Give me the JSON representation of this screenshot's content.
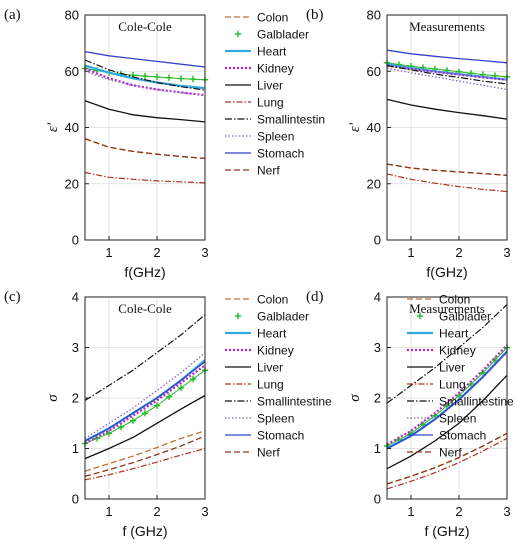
{
  "chart_data": [
    {
      "type": "line",
      "panel_label": "(a)",
      "title": "Cole-Cole",
      "xlabel": "f(GHz)",
      "ylabel": "ε'",
      "xlim": [
        0.5,
        3
      ],
      "ylim": [
        0,
        80
      ],
      "xticks": [
        1,
        2,
        3
      ],
      "yticks": [
        0,
        20,
        40,
        60,
        80
      ],
      "grid": true,
      "legend": "right",
      "x": [
        0.5,
        1.0,
        1.5,
        2.0,
        2.5,
        3.0
      ],
      "series": [
        {
          "name": "Colon",
          "values": [
            36,
            33,
            31.5,
            30.5,
            29.7,
            29
          ]
        },
        {
          "name": "Galblader",
          "values": [
            61,
            59.5,
            58.6,
            58,
            57.4,
            57
          ]
        },
        {
          "name": "Heart",
          "values": [
            62,
            59.5,
            57.5,
            56,
            54.8,
            54
          ]
        },
        {
          "name": "Kidney",
          "values": [
            61,
            57.5,
            55,
            53.5,
            52.5,
            51.5
          ]
        },
        {
          "name": "Liver",
          "values": [
            49.5,
            46.5,
            44.5,
            43.5,
            42.8,
            42
          ]
        },
        {
          "name": "Lung",
          "values": [
            24,
            22.3,
            21.6,
            21,
            20.7,
            20.3
          ]
        },
        {
          "name": "Smallintestin",
          "values": [
            64,
            60.5,
            58,
            56,
            54.5,
            53.3
          ]
        },
        {
          "name": "Spleen",
          "values": [
            60,
            57,
            55,
            53.5,
            52.3,
            51.5
          ]
        },
        {
          "name": "Stomach",
          "values": [
            67,
            65.5,
            64.5,
            63.5,
            62.5,
            61.5
          ]
        },
        {
          "name": "Nerf",
          "values": [
            36,
            33,
            31.5,
            30.5,
            29.7,
            29
          ]
        }
      ]
    },
    {
      "type": "line",
      "panel_label": "(b)",
      "title": "Measurements",
      "xlabel": "f(GHz)",
      "ylabel": "ε'",
      "xlim": [
        0.5,
        3
      ],
      "ylim": [
        0,
        80
      ],
      "xticks": [
        1,
        2,
        3
      ],
      "yticks": [
        0,
        20,
        40,
        60,
        80
      ],
      "grid": true,
      "x": [
        0.5,
        1.0,
        1.5,
        2.0,
        2.5,
        3.0
      ],
      "series": [
        {
          "name": "Colon",
          "values": [
            27,
            25.6,
            24.8,
            24.2,
            23.6,
            23
          ]
        },
        {
          "name": "Galblader",
          "values": [
            63,
            61.8,
            60.8,
            59.8,
            58.8,
            58
          ]
        },
        {
          "name": "Heart",
          "values": [
            62.5,
            61.2,
            60,
            59,
            58,
            57
          ]
        },
        {
          "name": "Kidney",
          "values": [
            62,
            60.8,
            59.8,
            58.8,
            57.8,
            57
          ]
        },
        {
          "name": "Liver",
          "values": [
            50,
            48,
            46.5,
            45.3,
            44.2,
            43
          ]
        },
        {
          "name": "Lung",
          "values": [
            23.5,
            21.6,
            20.2,
            19,
            18,
            17.2
          ]
        },
        {
          "name": "Smallintestine",
          "values": [
            62,
            60.5,
            59,
            57.8,
            56.5,
            55.5
          ]
        },
        {
          "name": "Spleen",
          "values": [
            61,
            59.5,
            58,
            56.5,
            55,
            53.5
          ]
        },
        {
          "name": "Stomach",
          "values": [
            67.5,
            66.2,
            65.3,
            64.5,
            63.8,
            63
          ]
        },
        {
          "name": "Nerf",
          "values": [
            27,
            25.6,
            24.8,
            24.2,
            23.6,
            23
          ]
        }
      ]
    },
    {
      "type": "line",
      "panel_label": "(c)",
      "title": "Cole-Cole",
      "xlabel": "f (GHz)",
      "ylabel": "σ",
      "xlim": [
        0.5,
        3
      ],
      "ylim": [
        0,
        4
      ],
      "xticks": [
        1,
        2,
        3
      ],
      "yticks": [
        0,
        1,
        2,
        3,
        4
      ],
      "grid": true,
      "legend": "right",
      "x": [
        0.5,
        1.0,
        1.5,
        2.0,
        2.5,
        3.0
      ],
      "series": [
        {
          "name": "Colon",
          "values": [
            0.55,
            0.7,
            0.85,
            1.02,
            1.2,
            1.35
          ]
        },
        {
          "name": "Galblader",
          "values": [
            1.1,
            1.3,
            1.55,
            1.85,
            2.2,
            2.55
          ]
        },
        {
          "name": "Heart",
          "values": [
            1.15,
            1.4,
            1.7,
            2.0,
            2.35,
            2.75
          ]
        },
        {
          "name": "Kidney",
          "values": [
            1.1,
            1.35,
            1.65,
            1.95,
            2.3,
            2.65
          ]
        },
        {
          "name": "Liver",
          "values": [
            0.8,
            1.0,
            1.22,
            1.5,
            1.78,
            2.05
          ]
        },
        {
          "name": "Lung",
          "values": [
            0.38,
            0.48,
            0.6,
            0.73,
            0.87,
            1.0
          ]
        },
        {
          "name": "Smallintestine",
          "values": [
            1.95,
            2.25,
            2.55,
            2.9,
            3.25,
            3.65
          ]
        },
        {
          "name": "Spleen",
          "values": [
            1.2,
            1.5,
            1.8,
            2.15,
            2.5,
            2.9
          ]
        },
        {
          "name": "Stomach",
          "values": [
            1.15,
            1.4,
            1.7,
            2.0,
            2.35,
            2.72
          ]
        },
        {
          "name": "Nerf",
          "values": [
            0.45,
            0.58,
            0.72,
            0.88,
            1.05,
            1.25
          ]
        }
      ]
    },
    {
      "type": "line",
      "panel_label": "(d)",
      "title": "Measurements",
      "xlabel": "f (GHz)",
      "ylabel": "σ",
      "xlim": [
        0.5,
        3
      ],
      "ylim": [
        0,
        4
      ],
      "xticks": [
        1,
        2,
        3
      ],
      "yticks": [
        0,
        1,
        2,
        3,
        4
      ],
      "grid": true,
      "legend": "right",
      "x": [
        0.5,
        1.0,
        1.5,
        2.0,
        2.5,
        3.0
      ],
      "series": [
        {
          "name": "Colon",
          "values": [
            0.3,
            0.45,
            0.62,
            0.82,
            1.05,
            1.3
          ]
        },
        {
          "name": "Galblader",
          "values": [
            1.05,
            1.3,
            1.65,
            2.05,
            2.5,
            3.0
          ]
        },
        {
          "name": "Heart",
          "values": [
            1.0,
            1.25,
            1.58,
            1.97,
            2.42,
            2.92
          ]
        },
        {
          "name": "Kidney",
          "values": [
            1.08,
            1.35,
            1.7,
            2.1,
            2.55,
            3.05
          ]
        },
        {
          "name": "Liver",
          "values": [
            0.6,
            0.85,
            1.15,
            1.5,
            1.95,
            2.45
          ]
        },
        {
          "name": "Lung",
          "values": [
            0.2,
            0.35,
            0.52,
            0.72,
            0.95,
            1.2
          ]
        },
        {
          "name": "Smallintestine",
          "values": [
            1.9,
            2.25,
            2.6,
            3.0,
            3.4,
            3.85
          ]
        },
        {
          "name": "Spleen",
          "values": [
            1.0,
            1.25,
            1.57,
            1.95,
            2.4,
            2.9
          ]
        },
        {
          "name": "Stomach",
          "values": [
            1.0,
            1.25,
            1.58,
            1.97,
            2.42,
            2.92
          ]
        },
        {
          "name": "Nerf",
          "values": [
            0.3,
            0.45,
            0.62,
            0.82,
            1.05,
            1.3
          ]
        }
      ]
    }
  ],
  "styles": {
    "Colon": {
      "color": "#c0703a",
      "dash": "6,3",
      "width": 1.3
    },
    "Galblader": {
      "color": "#22bb22",
      "dash": "",
      "width": 1.0,
      "marker": "plus"
    },
    "Heart": {
      "color": "#33aadd",
      "dash": "",
      "width": 2.2
    },
    "Kidney": {
      "color": "#bb22cc",
      "dash": "2,2",
      "width": 2.2
    },
    "Liver": {
      "color": "#111111",
      "dash": "",
      "width": 1.3
    },
    "Lung": {
      "color": "#aa3322",
      "dash": "6,2,1.5,2",
      "width": 1.2
    },
    "Smallintestin": {
      "color": "#111111",
      "dash": "7,2,1.5,2",
      "width": 1.2
    },
    "Smallintestine": {
      "color": "#111111",
      "dash": "7,2,1.5,2",
      "width": 1.2
    },
    "Spleen": {
      "color": "#8866cc",
      "dash": "1.5,2",
      "width": 1.3
    },
    "Stomach": {
      "color": "#3344cc",
      "dash": "",
      "width": 1.3
    },
    "Nerf": {
      "color": "#8a3a1a",
      "dash": "6,3",
      "width": 1.3
    }
  }
}
